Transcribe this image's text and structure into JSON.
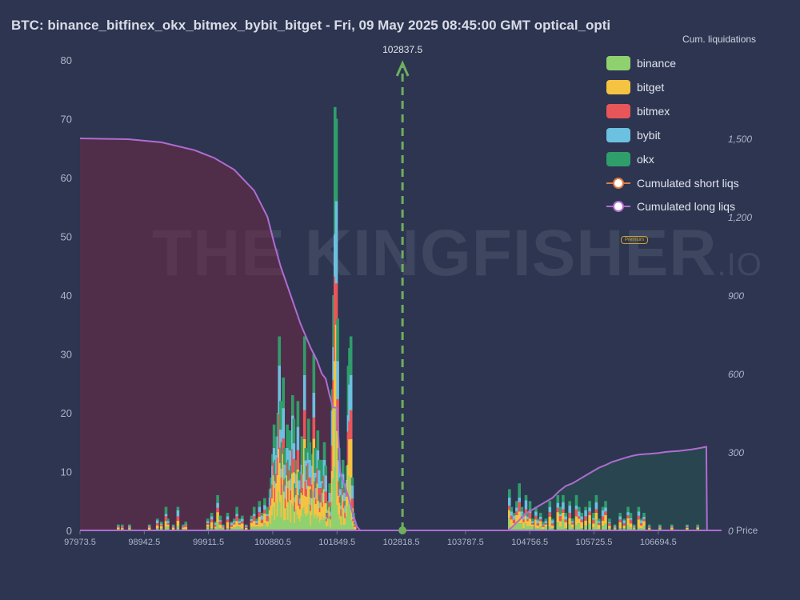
{
  "title": "BTC: binance_bitfinex_okx_bitmex_bybit_bitget - Fri, 09 May 2025 08:45:00 GMT optical_opti",
  "watermark": {
    "main": "THE KINGFISHER",
    "suffix": ".IO",
    "badge": "Premium"
  },
  "colors": {
    "background": "#2d3551",
    "binance": "#8fd16f",
    "bitget": "#f5c342",
    "bitmex": "#e8565a",
    "bybit": "#6cc0e0",
    "okx": "#2f9e6a",
    "short_line": "#e07a3f",
    "long_line": "#b06cd0",
    "current_price": "#6fae5e"
  },
  "chart_data": {
    "type": "bar",
    "title": "",
    "xlabel": "Price",
    "ylabel": "",
    "xlim": [
      97973.5,
      107650
    ],
    "ylim": [
      0,
      80
    ],
    "y2lim": [
      0,
      1800
    ],
    "y2label": "Cum. liquidations",
    "x_ticks": [
      "97973.5",
      "98942.5",
      "99911.5",
      "100880.5",
      "101849.5",
      "102818.5",
      "103787.5",
      "104756.5",
      "105725.5",
      "106694.5"
    ],
    "y_ticks": [
      "0",
      "10",
      "20",
      "30",
      "40",
      "50",
      "60",
      "70",
      "80"
    ],
    "y2_ticks": [
      "0",
      "300",
      "600",
      "900",
      "1,200",
      "1,500"
    ],
    "current_price": {
      "label": "102837.5",
      "value": 102837.5
    },
    "legend": [
      {
        "name": "binance",
        "color": "#8fd16f",
        "kind": "bar"
      },
      {
        "name": "bitget",
        "color": "#f5c342",
        "kind": "bar"
      },
      {
        "name": "bitmex",
        "color": "#e8565a",
        "kind": "bar"
      },
      {
        "name": "bybit",
        "color": "#6cc0e0",
        "kind": "bar"
      },
      {
        "name": "okx",
        "color": "#2f9e6a",
        "kind": "bar"
      },
      {
        "name": "Cumulated short liqs",
        "color": "#e07a3f",
        "kind": "line"
      },
      {
        "name": "Cumulated long liqs",
        "color": "#b06cd0",
        "kind": "line"
      }
    ],
    "bars": [
      [
        98550,
        1
      ],
      [
        98610,
        1
      ],
      [
        98720,
        1
      ],
      [
        99020,
        1
      ],
      [
        99140,
        2
      ],
      [
        99200,
        1.5
      ],
      [
        99270,
        4
      ],
      [
        99300,
        2
      ],
      [
        99380,
        1
      ],
      [
        99450,
        4
      ],
      [
        99530,
        1
      ],
      [
        99570,
        1.5
      ],
      [
        99900,
        2
      ],
      [
        99960,
        3
      ],
      [
        100020,
        1.5
      ],
      [
        100050,
        6
      ],
      [
        100090,
        2.5
      ],
      [
        100130,
        1
      ],
      [
        100200,
        3
      ],
      [
        100260,
        1.5
      ],
      [
        100300,
        2
      ],
      [
        100340,
        4
      ],
      [
        100380,
        2
      ],
      [
        100420,
        2.5
      ],
      [
        100480,
        1
      ],
      [
        100560,
        2.5
      ],
      [
        100600,
        4
      ],
      [
        100640,
        2
      ],
      [
        100680,
        5
      ],
      [
        100720,
        3
      ],
      [
        100760,
        5.5
      ],
      [
        100800,
        4
      ],
      [
        100840,
        7
      ],
      [
        100860,
        9
      ],
      [
        100880,
        13
      ],
      [
        100900,
        18
      ],
      [
        100920,
        12
      ],
      [
        100940,
        16
      ],
      [
        100960,
        20
      ],
      [
        100980,
        33
      ],
      [
        101000,
        22
      ],
      [
        101020,
        15
      ],
      [
        101040,
        26
      ],
      [
        101060,
        14
      ],
      [
        101080,
        9
      ],
      [
        101100,
        18
      ],
      [
        101120,
        12
      ],
      [
        101140,
        17
      ],
      [
        101160,
        11
      ],
      [
        101180,
        23
      ],
      [
        101200,
        19
      ],
      [
        101220,
        8
      ],
      [
        101240,
        12
      ],
      [
        101260,
        22
      ],
      [
        101280,
        10
      ],
      [
        101300,
        7
      ],
      [
        101320,
        16
      ],
      [
        101340,
        12
      ],
      [
        101360,
        33
      ],
      [
        101380,
        14
      ],
      [
        101400,
        11
      ],
      [
        101420,
        19
      ],
      [
        101440,
        15
      ],
      [
        101460,
        7
      ],
      [
        101480,
        13
      ],
      [
        101500,
        30
      ],
      [
        101520,
        14
      ],
      [
        101540,
        9
      ],
      [
        101560,
        17
      ],
      [
        101580,
        12
      ],
      [
        101600,
        6
      ],
      [
        101620,
        12
      ],
      [
        101640,
        8
      ],
      [
        101660,
        15
      ],
      [
        101680,
        11
      ],
      [
        101700,
        3
      ],
      [
        101720,
        5
      ],
      [
        101740,
        8
      ],
      [
        101760,
        4
      ],
      [
        101780,
        24
      ],
      [
        101800,
        40
      ],
      [
        101820,
        72
      ],
      [
        101840,
        70
      ],
      [
        101860,
        36
      ],
      [
        101880,
        14
      ],
      [
        101900,
        9
      ],
      [
        101920,
        6
      ],
      [
        101940,
        12
      ],
      [
        101960,
        8
      ],
      [
        101980,
        5
      ],
      [
        102000,
        11
      ],
      [
        102020,
        28
      ],
      [
        102040,
        31
      ],
      [
        102060,
        33
      ],
      [
        102080,
        9
      ],
      [
        102100,
        3
      ],
      [
        102120,
        1.5
      ],
      [
        104450,
        7
      ],
      [
        104480,
        4
      ],
      [
        104520,
        3
      ],
      [
        104560,
        5
      ],
      [
        104600,
        8
      ],
      [
        104640,
        4
      ],
      [
        104670,
        3
      ],
      [
        104700,
        6
      ],
      [
        104730,
        3
      ],
      [
        104760,
        5
      ],
      [
        104800,
        2
      ],
      [
        104850,
        4
      ],
      [
        104880,
        2
      ],
      [
        104920,
        3
      ],
      [
        104960,
        1.5
      ],
      [
        105000,
        2
      ],
      [
        105060,
        5
      ],
      [
        105100,
        2
      ],
      [
        105180,
        6
      ],
      [
        105220,
        4
      ],
      [
        105260,
        6
      ],
      [
        105300,
        3
      ],
      [
        105360,
        5
      ],
      [
        105400,
        2
      ],
      [
        105460,
        6
      ],
      [
        105500,
        4
      ],
      [
        105540,
        3
      ],
      [
        105600,
        4
      ],
      [
        105660,
        5
      ],
      [
        105720,
        3
      ],
      [
        105760,
        6
      ],
      [
        105800,
        2
      ],
      [
        105860,
        4
      ],
      [
        105900,
        5
      ],
      [
        105960,
        2
      ],
      [
        106040,
        1
      ],
      [
        106120,
        3
      ],
      [
        106180,
        2
      ],
      [
        106240,
        4
      ],
      [
        106280,
        3
      ],
      [
        106330,
        1
      ],
      [
        106400,
        4
      ],
      [
        106440,
        2
      ],
      [
        106480,
        3
      ],
      [
        106560,
        1
      ],
      [
        106720,
        1
      ],
      [
        106900,
        1
      ],
      [
        107130,
        1
      ],
      [
        107290,
        1
      ]
    ],
    "long_cum": [
      [
        97973.5,
        1500
      ],
      [
        98700,
        1497
      ],
      [
        99200,
        1485
      ],
      [
        99700,
        1455
      ],
      [
        100000,
        1425
      ],
      [
        100300,
        1380
      ],
      [
        100600,
        1300
      ],
      [
        100800,
        1200
      ],
      [
        100900,
        1100
      ],
      [
        101000,
        1010
      ],
      [
        101150,
        900
      ],
      [
        101300,
        790
      ],
      [
        101450,
        700
      ],
      [
        101550,
        650
      ],
      [
        101620,
        600
      ],
      [
        101680,
        580
      ],
      [
        101740,
        515
      ],
      [
        101790,
        470
      ],
      [
        101850,
        470
      ],
      [
        101900,
        220
      ],
      [
        101960,
        175
      ],
      [
        102020,
        130
      ],
      [
        102080,
        70
      ],
      [
        102150,
        15
      ],
      [
        102200,
        0
      ],
      [
        107650,
        0
      ]
    ],
    "short_cum": [
      [
        97973.5,
        0
      ],
      [
        104430,
        0
      ],
      [
        104500,
        15
      ],
      [
        104600,
        40
      ],
      [
        104700,
        65
      ],
      [
        104800,
        80
      ],
      [
        104900,
        95
      ],
      [
        105000,
        110
      ],
      [
        105100,
        125
      ],
      [
        105200,
        150
      ],
      [
        105300,
        170
      ],
      [
        105400,
        180
      ],
      [
        105500,
        195
      ],
      [
        105600,
        210
      ],
      [
        105700,
        225
      ],
      [
        105800,
        240
      ],
      [
        105900,
        250
      ],
      [
        106000,
        262
      ],
      [
        106100,
        270
      ],
      [
        106200,
        278
      ],
      [
        106300,
        285
      ],
      [
        106400,
        290
      ],
      [
        106500,
        292
      ],
      [
        106600,
        294
      ],
      [
        106700,
        296
      ],
      [
        106800,
        300
      ],
      [
        106900,
        302
      ],
      [
        107000,
        304
      ],
      [
        107100,
        307
      ],
      [
        107200,
        310
      ],
      [
        107300,
        314
      ],
      [
        107380,
        318
      ],
      [
        107420,
        320
      ],
      [
        107430,
        0
      ],
      [
        107650,
        0
      ]
    ]
  }
}
